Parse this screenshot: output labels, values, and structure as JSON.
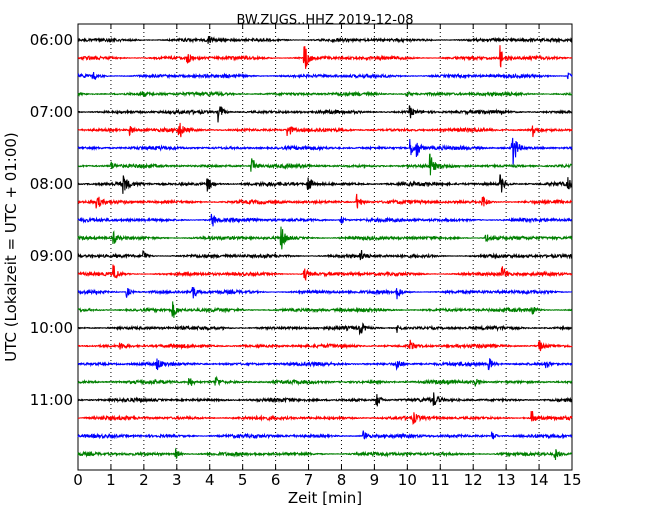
{
  "chart_data": {
    "type": "line",
    "title": "BW.ZUGS..HHZ 2019-12-08",
    "xlabel": "Zeit  [min]",
    "ylabel": "UTC (Lokalzeit = UTC + 01:00)",
    "xlim": [
      0,
      15
    ],
    "x_ticks": [
      "0",
      "1",
      "2",
      "3",
      "4",
      "5",
      "6",
      "7",
      "8",
      "9",
      "10",
      "11",
      "12",
      "13",
      "14",
      "15"
    ],
    "y_ticks": [
      "06:00",
      "07:00",
      "08:00",
      "09:00",
      "10:00",
      "11:00"
    ],
    "grid": "vertical dotted",
    "trace_interval_min": 15,
    "trace_colors": [
      "#000000",
      "#ff0000",
      "#0000ff",
      "#008000"
    ],
    "traces": [
      {
        "start": "06:00",
        "events": [
          [
            4.0,
            0.15
          ]
        ]
      },
      {
        "start": "06:15",
        "events": [
          [
            3.35,
            0.25
          ],
          [
            6.9,
            0.65
          ],
          [
            12.85,
            0.65
          ]
        ]
      },
      {
        "start": "06:30",
        "events": [
          [
            0.5,
            0.2
          ],
          [
            14.9,
            0.2
          ]
        ]
      },
      {
        "start": "06:45",
        "events": [
          [
            2.0,
            0.1
          ],
          [
            10.0,
            0.15
          ]
        ]
      },
      {
        "start": "07:00",
        "events": [
          [
            4.3,
            0.55
          ],
          [
            10.1,
            0.3
          ]
        ]
      },
      {
        "start": "07:15",
        "events": [
          [
            1.6,
            0.3
          ],
          [
            3.1,
            0.4
          ],
          [
            6.4,
            0.35
          ],
          [
            13.8,
            0.55
          ]
        ]
      },
      {
        "start": "07:30",
        "events": [
          [
            10.1,
            0.5
          ],
          [
            10.3,
            0.45
          ],
          [
            13.2,
            1.4
          ]
        ]
      },
      {
        "start": "07:45",
        "events": [
          [
            1.0,
            0.25
          ],
          [
            5.3,
            0.45
          ],
          [
            10.7,
            0.6
          ]
        ]
      },
      {
        "start": "08:00",
        "events": [
          [
            1.4,
            0.45
          ],
          [
            3.95,
            0.4
          ],
          [
            7.0,
            0.5
          ],
          [
            12.85,
            0.5
          ],
          [
            14.9,
            0.3
          ]
        ]
      },
      {
        "start": "08:15",
        "events": [
          [
            0.6,
            0.3
          ],
          [
            8.5,
            0.45
          ],
          [
            12.3,
            0.4
          ]
        ]
      },
      {
        "start": "08:30",
        "events": [
          [
            4.1,
            0.35
          ],
          [
            8.0,
            0.25
          ]
        ]
      },
      {
        "start": "08:45",
        "events": [
          [
            1.1,
            0.3
          ],
          [
            6.2,
            0.6
          ],
          [
            12.4,
            0.3
          ]
        ]
      },
      {
        "start": "09:00",
        "events": [
          [
            2.0,
            0.35
          ],
          [
            8.6,
            0.3
          ]
        ]
      },
      {
        "start": "09:15",
        "events": [
          [
            1.1,
            0.45
          ],
          [
            6.9,
            0.35
          ],
          [
            12.9,
            0.45
          ]
        ]
      },
      {
        "start": "09:30",
        "events": [
          [
            1.5,
            0.3
          ],
          [
            3.5,
            0.35
          ],
          [
            9.7,
            0.35
          ]
        ]
      },
      {
        "start": "09:45",
        "events": [
          [
            2.9,
            0.45
          ],
          [
            13.8,
            0.25
          ]
        ]
      },
      {
        "start": "10:00",
        "events": [
          [
            8.6,
            0.3
          ],
          [
            9.7,
            0.25
          ]
        ]
      },
      {
        "start": "10:15",
        "events": [
          [
            1.3,
            0.2
          ],
          [
            10.1,
            0.3
          ],
          [
            14.0,
            0.4
          ]
        ]
      },
      {
        "start": "10:30",
        "events": [
          [
            2.4,
            0.3
          ],
          [
            9.7,
            0.35
          ],
          [
            12.5,
            0.35
          ],
          [
            14.2,
            0.3
          ]
        ]
      },
      {
        "start": "10:45",
        "events": [
          [
            3.4,
            0.3
          ],
          [
            4.2,
            0.3
          ],
          [
            12.1,
            0.2
          ]
        ]
      },
      {
        "start": "11:00",
        "events": [
          [
            9.1,
            0.35
          ],
          [
            10.8,
            0.35
          ]
        ]
      },
      {
        "start": "11:15",
        "events": [
          [
            10.2,
            0.25
          ],
          [
            13.8,
            0.35
          ]
        ]
      },
      {
        "start": "11:30",
        "events": [
          [
            8.7,
            0.3
          ],
          [
            12.6,
            0.25
          ]
        ]
      },
      {
        "start": "11:45",
        "events": [
          [
            3.0,
            0.25
          ],
          [
            14.5,
            0.3
          ]
        ]
      }
    ]
  }
}
